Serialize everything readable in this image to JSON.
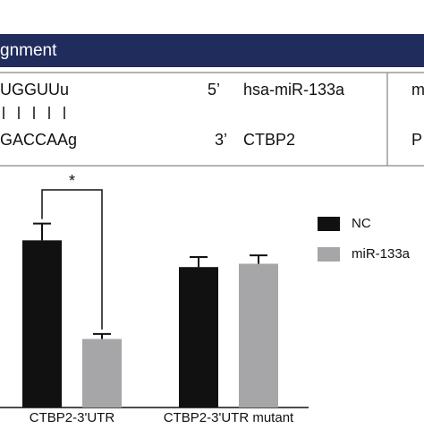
{
  "alignment": {
    "title": "gnment",
    "row1": {
      "seq": "UGGUUu",
      "end": "5’",
      "name": "hsa-miR-133a",
      "next": "m"
    },
    "row2": {
      "seq": "GACCAAg",
      "end": "3’",
      "name": "CTBP2",
      "next": "P"
    }
  },
  "chart_data": {
    "type": "bar",
    "categories": [
      "CTBP2-3'UTR",
      "CTBP2-3'UTR mutant"
    ],
    "series": [
      {
        "name": "NC",
        "color": "#111111",
        "values": [
          1.0,
          0.84
        ],
        "errors": [
          0.1,
          0.06
        ]
      },
      {
        "name": "miR-133a",
        "color": "#a6a6a8",
        "values": [
          0.41,
          0.86
        ],
        "errors": [
          0.03,
          0.05
        ]
      }
    ],
    "ylim": [
      0,
      1.2
    ],
    "annotation": "*"
  }
}
